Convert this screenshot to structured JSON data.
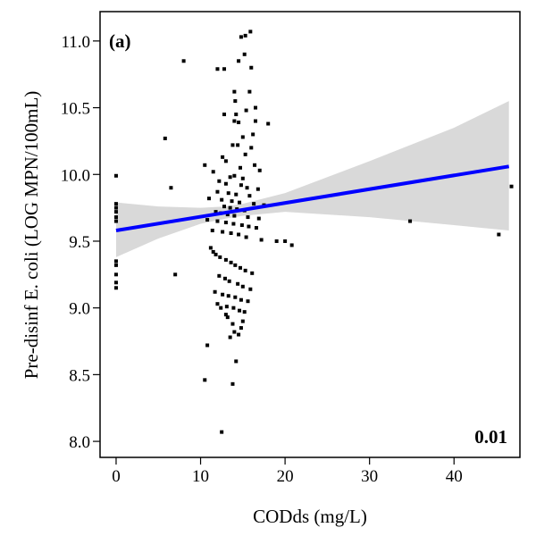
{
  "chart_data": {
    "type": "scatter",
    "x_label": "CODds (mg/L)",
    "y_label": "Pre-disinf E. coli (LOG MPN/100mL)",
    "annotations": [
      "(a)",
      "0.01"
    ],
    "xlim": [
      -1.9,
      47.8
    ],
    "ylim": [
      7.88,
      11.22
    ],
    "xticks": [
      0,
      10,
      20,
      30,
      40
    ],
    "yticks": [
      {
        "value": 8,
        "label": "8.0"
      },
      8.5,
      {
        "value": 9,
        "label": "9.0"
      },
      9.5,
      {
        "value": 10,
        "label": "10.0"
      },
      10.5,
      {
        "value": 11,
        "label": "11.0"
      }
    ],
    "color": "#000000",
    "x": [
      0,
      0,
      0,
      0,
      0,
      0,
      0,
      0,
      0,
      0,
      0,
      5.8,
      8.0,
      6.5,
      7.0,
      10.5,
      10.8,
      10.5,
      12.5,
      13.8,
      14.2,
      12.0,
      12.8,
      15.3,
      15.9,
      14.8,
      15.2,
      14.5,
      16.0,
      14.0,
      14.1,
      15.8,
      16.5,
      15.4,
      14.2,
      12.8,
      14.0,
      14.5,
      16.5,
      18.0,
      16.2,
      15.0,
      13.8,
      14.4,
      16.0,
      15.3,
      12.6,
      13.0,
      16.4,
      14.7,
      11.5,
      17.0,
      14.0,
      13.5,
      15.0,
      12.2,
      13.0,
      14.8,
      15.5,
      16.8,
      12.0,
      13.3,
      14.2,
      15.8,
      11.0,
      12.5,
      13.7,
      14.6,
      16.3,
      17.5,
      12.8,
      13.5,
      14.3,
      15.2,
      11.8,
      12.4,
      13.2,
      14.0,
      15.6,
      16.9,
      10.8,
      12.0,
      13.0,
      13.9,
      14.9,
      15.7,
      16.6,
      11.4,
      12.6,
      13.6,
      14.5,
      15.4,
      17.2,
      19.0,
      20.0,
      20.8,
      11.2,
      11.5,
      11.8,
      12.3,
      13.0,
      13.6,
      14.1,
      14.7,
      15.3,
      16.1,
      12.2,
      12.9,
      13.4,
      14.4,
      15.0,
      15.9,
      11.7,
      12.6,
      13.3,
      14.1,
      14.8,
      15.6,
      12.0,
      13.1,
      13.9,
      14.6,
      15.2,
      13.0,
      13.2,
      12.4,
      14.0,
      13.5,
      14.5,
      15.0,
      14.8,
      13.8,
      34.8,
      45.3,
      46.8
    ],
    "values": [
      9.99,
      9.78,
      9.75,
      9.72,
      9.68,
      9.65,
      9.35,
      9.32,
      9.25,
      9.19,
      9.15,
      10.27,
      10.85,
      9.9,
      9.25,
      10.07,
      8.72,
      8.46,
      8.07,
      8.43,
      8.6,
      10.79,
      10.79,
      11.04,
      11.07,
      11.03,
      10.9,
      10.85,
      10.8,
      10.62,
      10.55,
      10.62,
      10.5,
      10.48,
      10.45,
      10.45,
      10.4,
      10.39,
      10.4,
      10.38,
      10.3,
      10.28,
      10.22,
      10.22,
      10.2,
      10.15,
      10.13,
      10.1,
      10.07,
      10.05,
      10.02,
      10.03,
      9.99,
      9.98,
      9.97,
      9.95,
      9.93,
      9.92,
      9.9,
      9.89,
      9.87,
      9.86,
      9.85,
      9.84,
      9.82,
      9.81,
      9.8,
      9.79,
      9.78,
      9.77,
      9.76,
      9.75,
      9.74,
      9.73,
      9.72,
      9.71,
      9.7,
      9.69,
      9.68,
      9.67,
      9.66,
      9.65,
      9.64,
      9.63,
      9.62,
      9.61,
      9.6,
      9.58,
      9.57,
      9.56,
      9.55,
      9.53,
      9.51,
      9.5,
      9.5,
      9.47,
      9.45,
      9.42,
      9.4,
      9.38,
      9.36,
      9.34,
      9.32,
      9.3,
      9.28,
      9.26,
      9.24,
      9.22,
      9.2,
      9.18,
      9.16,
      9.14,
      9.12,
      9.1,
      9.09,
      9.08,
      9.06,
      9.05,
      9.03,
      9.01,
      9.0,
      8.98,
      8.97,
      8.95,
      8.93,
      9.0,
      8.82,
      8.78,
      8.8,
      8.9,
      8.85,
      8.88,
      9.65,
      9.55,
      9.91
    ],
    "fit": {
      "color": "#0000ff",
      "x": [
        0,
        46.5
      ],
      "values": [
        9.58,
        10.06
      ]
    },
    "band": {
      "color": "#d9d9d9",
      "x": [
        0,
        5,
        10,
        13,
        15,
        20,
        30,
        40,
        46.5
      ],
      "lower": [
        9.38,
        9.52,
        9.63,
        9.67,
        9.69,
        9.72,
        9.68,
        9.62,
        9.58
      ],
      "upper": [
        9.79,
        9.76,
        9.75,
        9.76,
        9.78,
        9.86,
        10.1,
        10.35,
        10.55
      ]
    }
  }
}
